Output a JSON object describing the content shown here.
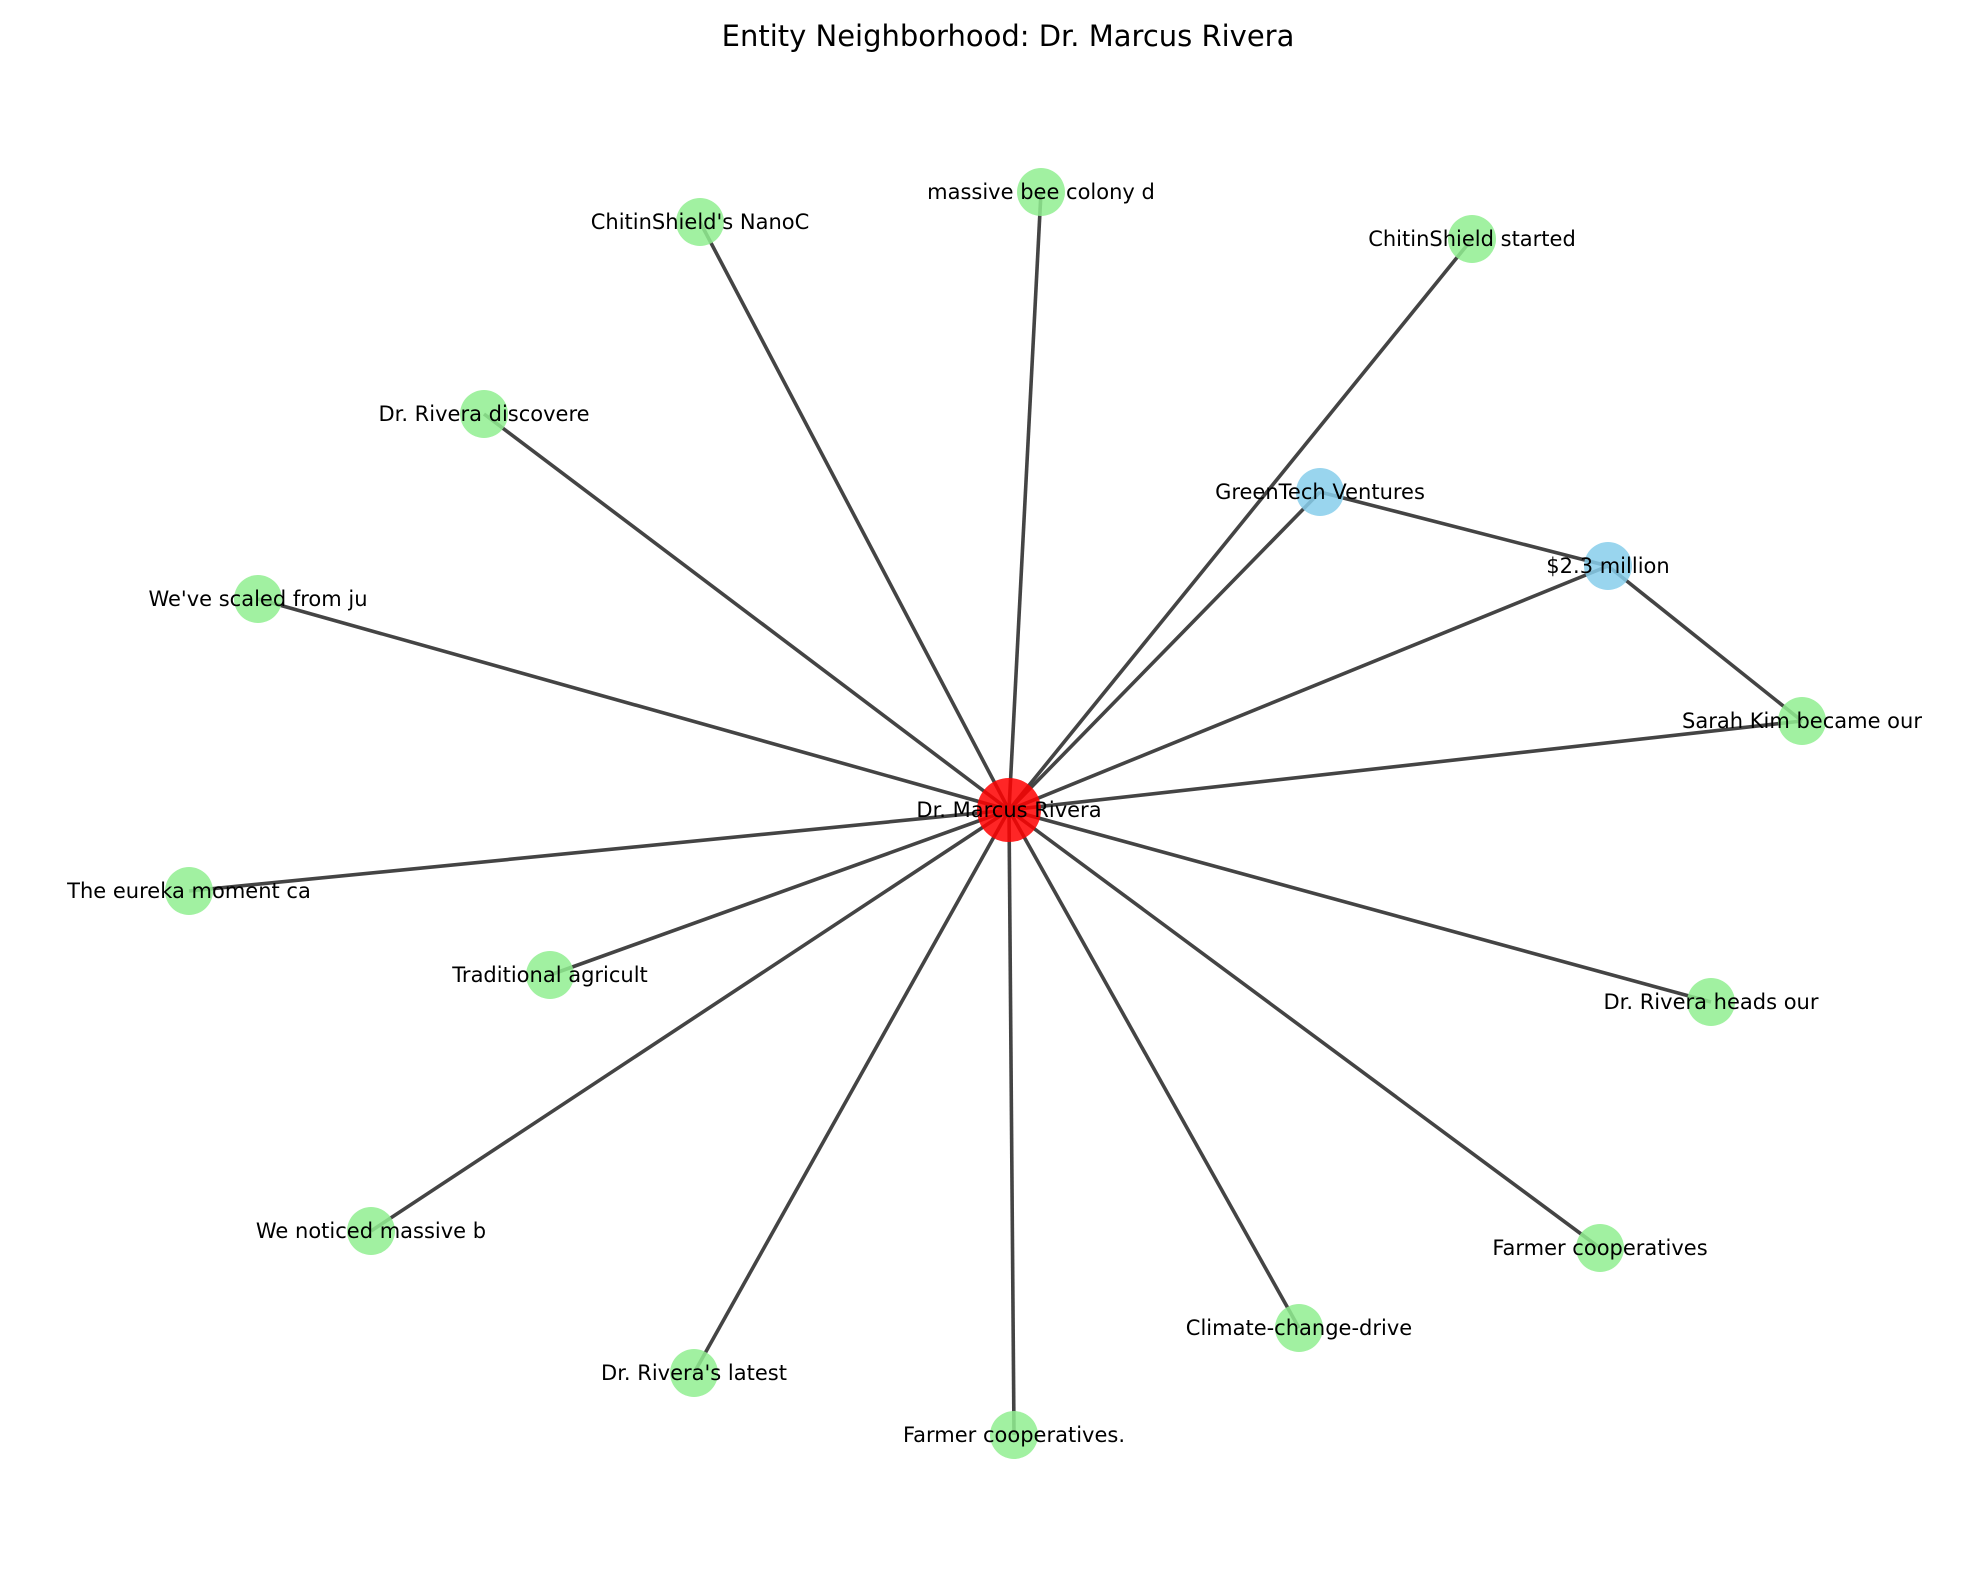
{
  "title": "Entity Neighborhood: Dr. Marcus Rivera",
  "colors": {
    "center": "#ff0000",
    "entity": "#87ceeb",
    "text_node": "#90ee90",
    "edge": "#444444"
  },
  "nodes": [
    {
      "id": "center",
      "label": "Dr. Marcus Rivera",
      "kind": "center"
    },
    {
      "id": "massive_bee",
      "label": "massive bee colony d",
      "kind": "text_node"
    },
    {
      "id": "chitin_nano",
      "label": "ChitinShield's NanoC",
      "kind": "text_node"
    },
    {
      "id": "chitin_started",
      "label": "ChitinShield started",
      "kind": "text_node"
    },
    {
      "id": "rivera_discovered",
      "label": "Dr. Rivera discovere",
      "kind": "text_node"
    },
    {
      "id": "greentech",
      "label": "GreenTech Ventures",
      "kind": "entity"
    },
    {
      "id": "money",
      "label": "$2.3 million",
      "kind": "entity"
    },
    {
      "id": "scaled",
      "label": "We've scaled from ju",
      "kind": "text_node"
    },
    {
      "id": "sarah_kim",
      "label": "Sarah Kim became our",
      "kind": "text_node"
    },
    {
      "id": "eureka",
      "label": "The eureka moment ca",
      "kind": "text_node"
    },
    {
      "id": "traditional",
      "label": "Traditional agricult",
      "kind": "text_node"
    },
    {
      "id": "heads",
      "label": "Dr. Rivera heads our",
      "kind": "text_node"
    },
    {
      "id": "noticed",
      "label": "We noticed massive b",
      "kind": "text_node"
    },
    {
      "id": "farmer_coop",
      "label": "Farmer cooperatives",
      "kind": "text_node"
    },
    {
      "id": "climate",
      "label": "Climate-change-drive",
      "kind": "text_node"
    },
    {
      "id": "latest",
      "label": "Dr. Rivera's latest",
      "kind": "text_node"
    },
    {
      "id": "farmer_coop_dot",
      "label": "Farmer cooperatives.",
      "kind": "text_node"
    }
  ],
  "edges": [
    [
      "center",
      "massive_bee"
    ],
    [
      "center",
      "chitin_nano"
    ],
    [
      "center",
      "chitin_started"
    ],
    [
      "center",
      "rivera_discovered"
    ],
    [
      "center",
      "greentech"
    ],
    [
      "center",
      "money"
    ],
    [
      "center",
      "scaled"
    ],
    [
      "center",
      "sarah_kim"
    ],
    [
      "center",
      "eureka"
    ],
    [
      "center",
      "traditional"
    ],
    [
      "center",
      "heads"
    ],
    [
      "center",
      "noticed"
    ],
    [
      "center",
      "farmer_coop"
    ],
    [
      "center",
      "climate"
    ],
    [
      "center",
      "latest"
    ],
    [
      "center",
      "farmer_coop_dot"
    ],
    [
      "greentech",
      "money"
    ],
    [
      "money",
      "sarah_kim"
    ]
  ]
}
